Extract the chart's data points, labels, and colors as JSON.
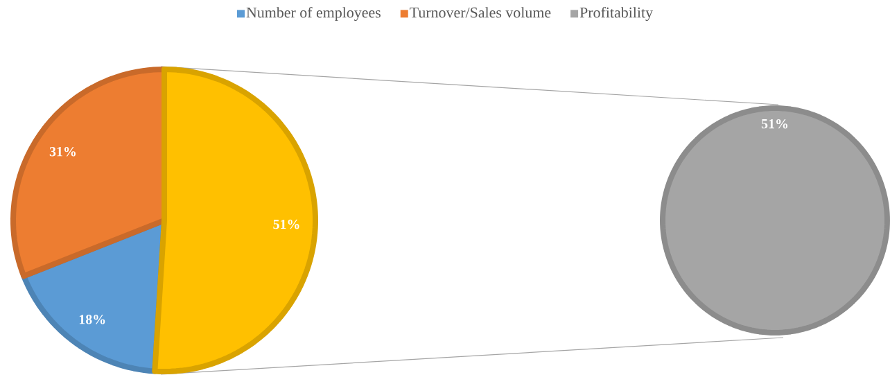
{
  "chart_data": [
    {
      "type": "pie",
      "categories": [
        "Number of employees",
        "Turnover/Sales volume",
        null
      ],
      "values": [
        18,
        31,
        51
      ],
      "colors": [
        "#5b9bd5",
        "#ed7d31",
        "#ffc000"
      ],
      "value_labels": [
        "18%",
        "31%",
        "51%"
      ],
      "legend": "top"
    },
    {
      "type": "pie",
      "categories": [
        "Profitability"
      ],
      "values": [
        51
      ],
      "colors": [
        "#a5a5a5"
      ],
      "value_labels": [
        "51%"
      ],
      "legend": "top"
    }
  ]
}
